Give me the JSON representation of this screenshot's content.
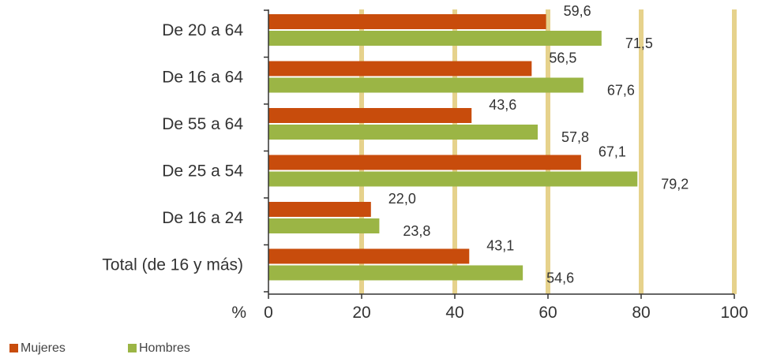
{
  "chart_data": {
    "type": "bar",
    "orientation": "horizontal",
    "categories": [
      "De 20 a 64",
      "De 16 a 64",
      "De 55 a 64",
      "De 25 a 54",
      "De 16 a 24",
      "Total (de 16 y más)"
    ],
    "series": [
      {
        "name": "Mujeres",
        "values": [
          59.6,
          56.5,
          43.6,
          67.1,
          22.0,
          43.1
        ],
        "labels": [
          "59,6",
          "56,5",
          "43,6",
          "67,1",
          "22,0",
          "43,1"
        ],
        "color": "#c84c0c"
      },
      {
        "name": "Hombres",
        "values": [
          71.5,
          67.6,
          57.8,
          79.2,
          23.8,
          54.6
        ],
        "labels": [
          "71,5",
          "67,6",
          "57,8",
          "79,2",
          "23,8",
          "54,6"
        ],
        "color": "#9bb545"
      }
    ],
    "xlabel": "%",
    "xlim": [
      0,
      100
    ],
    "xticks": [
      0,
      20,
      40,
      60,
      80,
      100
    ],
    "grid": true,
    "grid_color": "#e6d28c",
    "legend": "bottom-left"
  }
}
